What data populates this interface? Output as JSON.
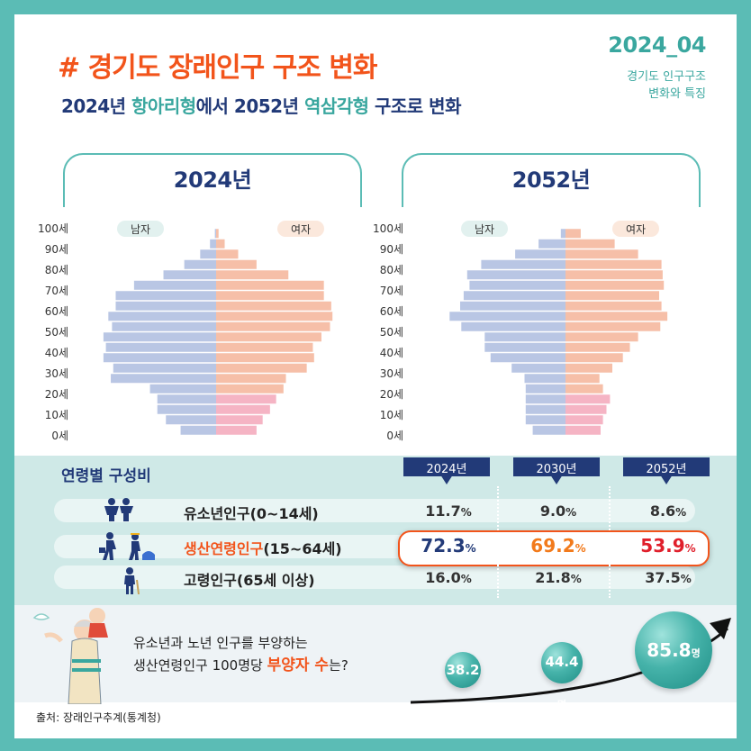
{
  "header": {
    "title": "# 경기도 장래인구 구조 변화",
    "subtitle_parts": [
      "2024년 ",
      "항아리형",
      "에서 2052년 ",
      "역삼각형",
      " 구조로 변화"
    ],
    "edition": "2024_04",
    "edition_note_lines": [
      "경기도 인구구조",
      "변화와 특징"
    ]
  },
  "colors": {
    "male": "#b9c6e4",
    "female": "#f6bfa8",
    "female_young": "#f5b4c4",
    "teal": "#5bbcb5",
    "navy": "#223a78",
    "orange": "#f2541b"
  },
  "chart_data": [
    {
      "type": "bar",
      "title": "2024년",
      "legend": [
        "남자",
        "여자"
      ],
      "y_ticks": [
        "100세",
        "90세",
        "80세",
        "70세",
        "60세",
        "50세",
        "40세",
        "30세",
        "20세",
        "10세",
        "0세"
      ],
      "note": "population pyramid, relative share by 5-year age group, no value axis",
      "series": [
        {
          "name": "남자",
          "values": [
            0.29,
            0.41,
            0.48,
            0.48,
            0.54,
            0.86,
            0.84,
            0.92,
            0.9,
            0.92,
            0.85,
            0.88,
            0.82,
            0.82,
            0.67,
            0.43,
            0.26,
            0.13,
            0.05,
            0.01
          ]
        },
        {
          "name": "여자",
          "values": [
            0.33,
            0.38,
            0.44,
            0.49,
            0.55,
            0.57,
            0.74,
            0.8,
            0.79,
            0.86,
            0.93,
            0.95,
            0.94,
            0.88,
            0.88,
            0.59,
            0.33,
            0.18,
            0.07,
            0.02
          ]
        }
      ]
    },
    {
      "type": "bar",
      "title": "2052년",
      "legend": [
        "남자",
        "여자"
      ],
      "y_ticks": [
        "100세",
        "90세",
        "80세",
        "70세",
        "60세",
        "50세",
        "40세",
        "30세",
        "20세",
        "10세",
        "0세"
      ],
      "note": "population pyramid, relative share by 5-year age group, no value axis",
      "series": [
        {
          "name": "남자",
          "values": [
            0.28,
            0.34,
            0.34,
            0.34,
            0.34,
            0.35,
            0.46,
            0.64,
            0.69,
            0.69,
            0.89,
            0.99,
            0.9,
            0.87,
            0.82,
            0.84,
            0.72,
            0.43,
            0.23,
            0.04
          ]
        },
        {
          "name": "여자",
          "values": [
            0.3,
            0.32,
            0.35,
            0.38,
            0.32,
            0.29,
            0.4,
            0.49,
            0.55,
            0.62,
            0.81,
            0.87,
            0.82,
            0.8,
            0.84,
            0.83,
            0.82,
            0.62,
            0.42,
            0.13
          ]
        }
      ]
    },
    {
      "type": "table",
      "title": "연령별 구성비",
      "columns": [
        "2024년",
        "2030년",
        "2052년"
      ],
      "rows": [
        {
          "label": "유소년인구(0~14세)",
          "values": [
            "11.7",
            "9.0",
            "8.6"
          ],
          "unit": "%"
        },
        {
          "label_highlight": "생산연령인구",
          "label_rest": "(15~64세)",
          "values": [
            "72.3",
            "69.2",
            "53.9"
          ],
          "unit": "%"
        },
        {
          "label": "고령인구(65세 이상)",
          "values": [
            "16.0",
            "21.8",
            "37.5"
          ],
          "unit": "%"
        }
      ]
    },
    {
      "type": "bar",
      "title": "",
      "question_lines": [
        "유소년과 노년 인구를 부양하는",
        "생산연령인구 100명당 ",
        "부양자 수",
        "는?"
      ],
      "categories": [
        "2024년",
        "2030년",
        "2052년"
      ],
      "values": [
        38.2,
        44.4,
        85.8
      ],
      "labels": [
        "38.2",
        "44.4",
        "85.8"
      ],
      "unit": "명"
    }
  ],
  "source": "출처: 장래인구추계(통계청)",
  "icons": [
    "children-icon",
    "workers-icon",
    "elderly-icon",
    "family-illustration",
    "trend-arrow-icon"
  ]
}
